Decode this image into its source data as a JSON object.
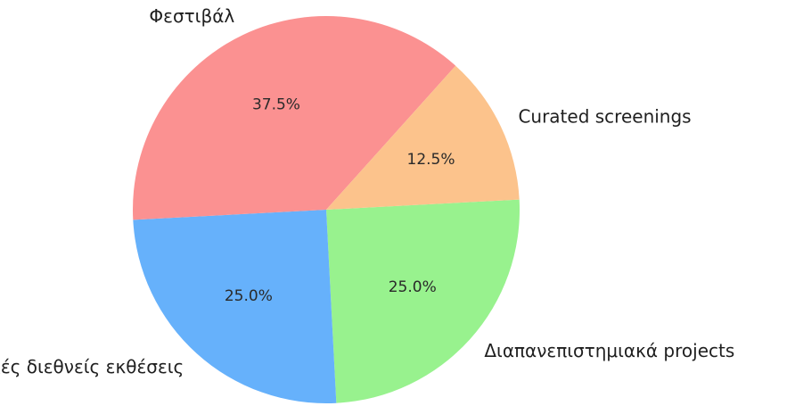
{
  "chart_data": {
    "type": "pie",
    "title": "",
    "start_angle_deg": -3,
    "direction": "clockwise",
    "slices": [
      {
        "label": "Διαπανεπιστημιακά projects",
        "value": 25.0,
        "pct_label": "25.0%",
        "color": "#98f28e"
      },
      {
        "label": "Ομαδικές διεθνείς εκθέσεις",
        "value": 25.0,
        "pct_label": "25.0%",
        "color": "#66b1fb"
      },
      {
        "label": "Φεστιβάλ",
        "value": 37.5,
        "pct_label": "37.5%",
        "color": "#fb9191"
      },
      {
        "label": "Curated screenings",
        "value": 12.5,
        "pct_label": "12.5%",
        "color": "#fcc38c"
      }
    ]
  }
}
